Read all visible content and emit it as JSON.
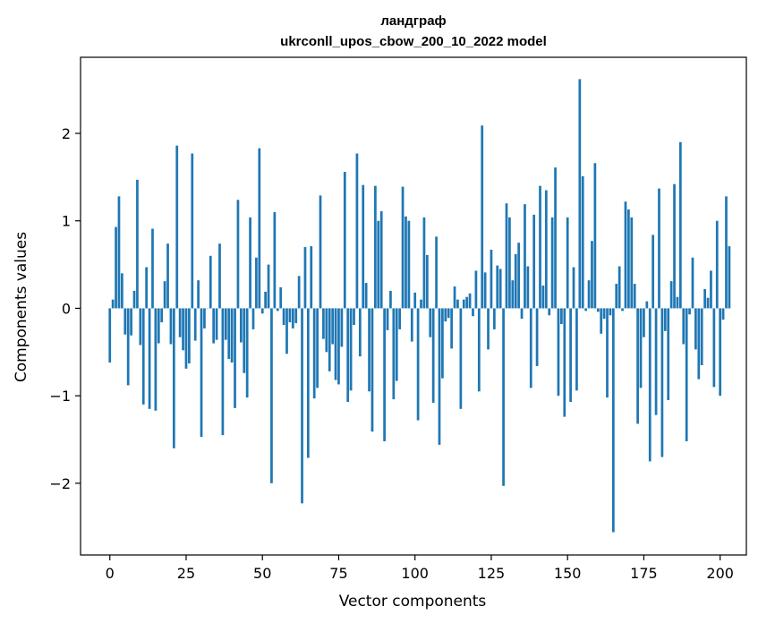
{
  "chart_data": {
    "type": "bar",
    "title": "ландграф",
    "subtitle": "ukrconll_upos_cbow_200_10_2022 model",
    "xlabel": "Vector components",
    "ylabel": "Components values",
    "xlim": [
      -9.6,
      208.6
    ],
    "ylim": [
      -2.82,
      2.87
    ],
    "xticks": [
      0,
      25,
      50,
      75,
      100,
      125,
      150,
      175,
      200
    ],
    "xtick_labels": [
      "0",
      "25",
      "50",
      "75",
      "100",
      "125",
      "150",
      "175",
      "200"
    ],
    "yticks": [
      -2,
      -1,
      0,
      1,
      2
    ],
    "ytick_labels": [
      "−2",
      "−1",
      "0",
      "1",
      "2"
    ],
    "bar_color": "#1f77b4",
    "values": [
      -0.62,
      0.1,
      0.93,
      1.28,
      0.4,
      -0.3,
      -0.88,
      -0.31,
      0.2,
      1.47,
      -0.42,
      -1.1,
      0.47,
      -1.15,
      0.91,
      -1.17,
      -0.4,
      -0.16,
      0.31,
      0.74,
      -0.41,
      -1.6,
      1.86,
      -0.33,
      -0.48,
      -0.69,
      -0.63,
      1.77,
      -0.37,
      0.32,
      -1.47,
      -0.23,
      0.0,
      0.6,
      -0.4,
      -0.36,
      0.74,
      -1.45,
      -0.36,
      -0.58,
      -0.62,
      -1.14,
      1.24,
      -0.39,
      -0.74,
      -1.02,
      1.04,
      -0.24,
      0.58,
      1.83,
      -0.06,
      0.19,
      0.5,
      -2.0,
      1.1,
      -0.03,
      0.24,
      -0.19,
      -0.52,
      -0.16,
      -0.23,
      -0.17,
      0.37,
      -2.23,
      0.7,
      -1.71,
      0.71,
      -1.03,
      -0.91,
      1.29,
      -0.35,
      -0.5,
      -0.72,
      -0.41,
      -0.82,
      -0.87,
      -0.44,
      1.56,
      -1.07,
      -0.94,
      -0.19,
      1.77,
      -0.55,
      1.41,
      0.29,
      -0.95,
      -1.41,
      1.4,
      1.0,
      1.11,
      -1.52,
      -0.25,
      0.2,
      -1.04,
      -0.83,
      -0.24,
      1.39,
      1.05,
      1.0,
      -0.38,
      0.18,
      -1.28,
      0.1,
      1.04,
      0.61,
      -0.33,
      -1.08,
      0.82,
      -1.56,
      -0.8,
      -0.15,
      -0.11,
      -0.46,
      0.25,
      0.1,
      -1.15,
      0.1,
      0.13,
      0.17,
      -0.09,
      0.43,
      -0.95,
      2.09,
      0.41,
      -0.47,
      0.67,
      -0.24,
      0.49,
      0.45,
      -2.03,
      1.2,
      1.04,
      0.32,
      0.62,
      0.75,
      -0.12,
      1.19,
      0.48,
      -0.91,
      1.07,
      -0.66,
      1.4,
      0.26,
      1.35,
      -0.08,
      1.04,
      1.61,
      -1.0,
      -0.18,
      -1.24,
      1.04,
      -1.07,
      0.47,
      -0.94,
      2.62,
      1.51,
      -0.03,
      0.32,
      0.77,
      1.66,
      -0.04,
      -0.29,
      -0.12,
      -1.02,
      -0.08,
      -2.56,
      0.28,
      0.48,
      -0.03,
      1.22,
      1.13,
      1.04,
      0.28,
      -1.32,
      -0.91,
      -0.33,
      0.08,
      -1.75,
      0.84,
      -1.22,
      1.37,
      -1.7,
      -0.26,
      -1.05,
      0.31,
      1.42,
      0.13,
      1.9,
      -0.41,
      -1.52,
      -0.07,
      0.58,
      -0.47,
      -0.81,
      -0.65,
      0.22,
      0.12,
      0.43,
      -0.9,
      1.0,
      -1.0,
      -0.13,
      1.28,
      0.71
    ]
  }
}
